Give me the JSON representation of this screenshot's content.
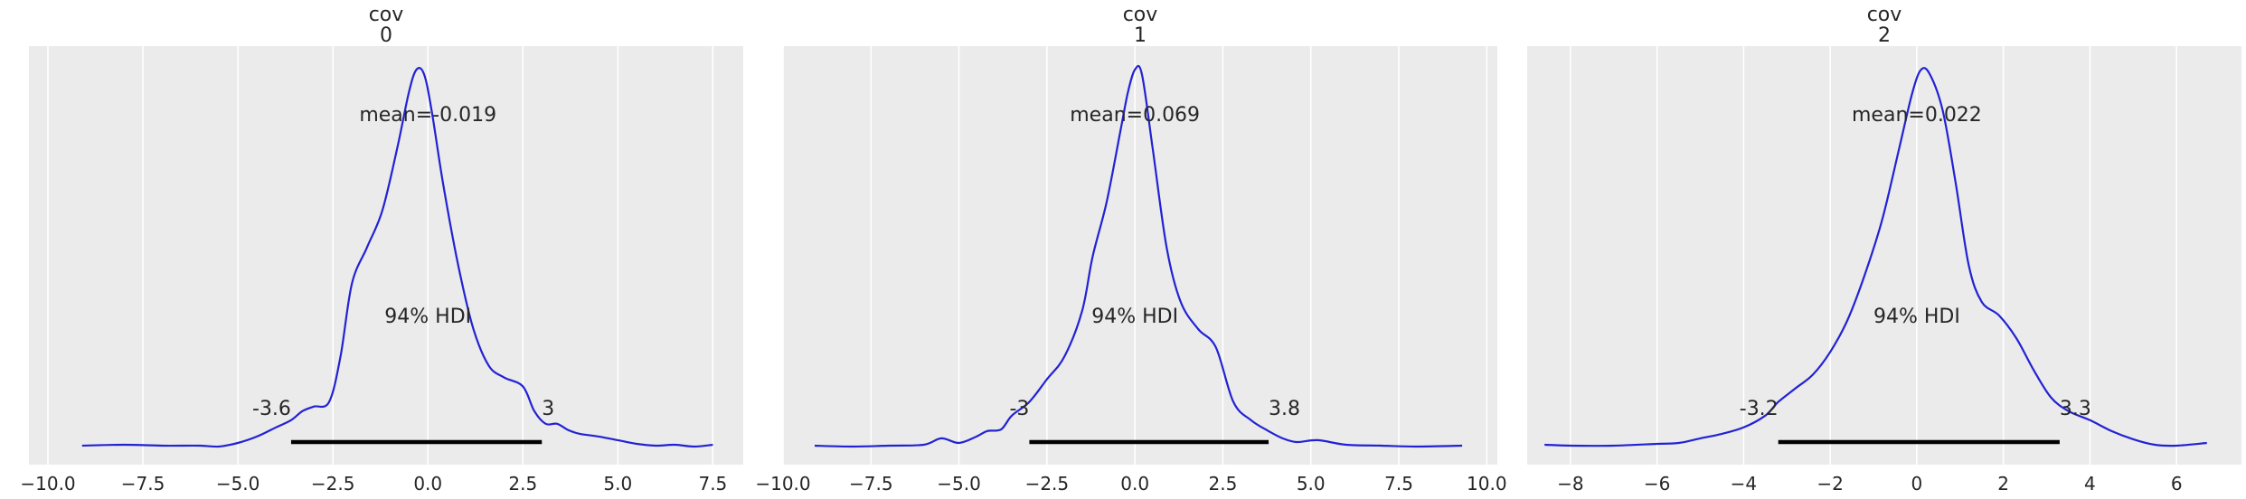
{
  "chart_data": [
    {
      "type": "line",
      "title_line1": "cov",
      "title_line2": "0",
      "xlim": [
        -10.5,
        8.3
      ],
      "xticks": [
        -10.0,
        -7.5,
        -5.0,
        -2.5,
        0.0,
        2.5,
        5.0,
        7.5
      ],
      "xtick_labels": [
        "−10.0",
        "−7.5",
        "−5.0",
        "−2.5",
        "0.0",
        "2.5",
        "5.0",
        "7.5"
      ],
      "mean_label": "mean=-0.019",
      "hdi_label": "94% HDI",
      "hdi": [
        -3.6,
        3.0
      ],
      "hdi_low_label": "-3.6",
      "hdi_high_label": "3",
      "density_max": 0.42,
      "curve": {
        "x": [
          -9.1,
          -8.0,
          -7.0,
          -6.0,
          -5.5,
          -5.0,
          -4.5,
          -4.0,
          -3.6,
          -3.3,
          -3.0,
          -2.6,
          -2.3,
          -2.0,
          -1.6,
          -1.2,
          -0.8,
          -0.5,
          -0.3,
          -0.1,
          0.1,
          0.4,
          0.8,
          1.2,
          1.6,
          2.0,
          2.5,
          2.8,
          3.1,
          3.4,
          3.7,
          4.0,
          4.5,
          5.0,
          5.5,
          6.0,
          6.5,
          7.0,
          7.5
        ],
        "y": [
          0.002,
          0.003,
          0.002,
          0.002,
          0.001,
          0.005,
          0.012,
          0.022,
          0.03,
          0.04,
          0.045,
          0.05,
          0.1,
          0.18,
          0.22,
          0.26,
          0.33,
          0.39,
          0.415,
          0.41,
          0.37,
          0.29,
          0.2,
          0.13,
          0.09,
          0.077,
          0.067,
          0.04,
          0.026,
          0.026,
          0.019,
          0.015,
          0.012,
          0.008,
          0.004,
          0.002,
          0.003,
          0.001,
          0.003
        ]
      }
    },
    {
      "type": "line",
      "title_line1": "cov",
      "title_line2": "1",
      "xlim": [
        -10.0,
        10.3
      ],
      "xticks": [
        -10.0,
        -7.5,
        -5.0,
        -2.5,
        0.0,
        2.5,
        5.0,
        7.5,
        10.0
      ],
      "xtick_labels": [
        "−10.0",
        "−7.5",
        "−5.0",
        "−2.5",
        "0.0",
        "2.5",
        "5.0",
        "7.5",
        "10.0"
      ],
      "mean_label": "mean=0.069",
      "hdi_label": "94% HDI",
      "hdi": [
        -3.0,
        3.8
      ],
      "hdi_low_label": "-3",
      "hdi_high_label": "3.8",
      "density_max": 0.42,
      "curve": {
        "x": [
          -9.1,
          -8.0,
          -7.0,
          -6.0,
          -5.5,
          -5.0,
          -4.5,
          -4.2,
          -3.8,
          -3.5,
          -3.0,
          -2.5,
          -2.0,
          -1.5,
          -1.2,
          -0.8,
          -0.4,
          -0.2,
          0.0,
          0.2,
          0.5,
          0.9,
          1.3,
          1.8,
          2.3,
          2.8,
          3.3,
          3.8,
          4.2,
          4.6,
          5.2,
          6.0,
          7.0,
          8.0,
          9.3
        ],
        "y": [
          0.002,
          0.001,
          0.002,
          0.003,
          0.01,
          0.005,
          0.012,
          0.018,
          0.02,
          0.035,
          0.05,
          0.075,
          0.1,
          0.15,
          0.21,
          0.27,
          0.35,
          0.39,
          0.415,
          0.41,
          0.33,
          0.22,
          0.16,
          0.13,
          0.11,
          0.05,
          0.03,
          0.018,
          0.01,
          0.006,
          0.008,
          0.003,
          0.002,
          0.001,
          0.002
        ]
      }
    },
    {
      "type": "line",
      "title_line1": "cov",
      "title_line2": "2",
      "xlim": [
        -9.0,
        7.5
      ],
      "xticks": [
        -8,
        -6,
        -4,
        -2,
        0,
        2,
        4,
        6
      ],
      "xtick_labels": [
        "−8",
        "−6",
        "−4",
        "−2",
        "0",
        "2",
        "4",
        "6"
      ],
      "mean_label": "mean=0.022",
      "hdi_label": "94% HDI",
      "hdi": [
        -3.2,
        3.3
      ],
      "hdi_low_label": "-3.2",
      "hdi_high_label": "3.3",
      "density_max": 0.42,
      "curve": {
        "x": [
          -8.6,
          -8.0,
          -7.0,
          -6.0,
          -5.5,
          -5.0,
          -4.5,
          -4.0,
          -3.5,
          -3.2,
          -2.8,
          -2.4,
          -2.0,
          -1.6,
          -1.2,
          -0.8,
          -0.4,
          -0.1,
          0.1,
          0.3,
          0.6,
          0.9,
          1.2,
          1.5,
          1.9,
          2.3,
          2.7,
          3.1,
          3.5,
          4.0,
          4.5,
          5.0,
          5.5,
          6.0,
          6.7
        ],
        "y": [
          0.003,
          0.002,
          0.002,
          0.004,
          0.005,
          0.01,
          0.015,
          0.022,
          0.035,
          0.05,
          0.065,
          0.08,
          0.105,
          0.14,
          0.19,
          0.25,
          0.33,
          0.39,
          0.415,
          0.41,
          0.37,
          0.29,
          0.2,
          0.16,
          0.145,
          0.12,
          0.085,
          0.055,
          0.04,
          0.03,
          0.018,
          0.009,
          0.003,
          0.002,
          0.005
        ]
      }
    }
  ],
  "colors": {
    "background": "#ebebeb",
    "grid": "#ffffff",
    "curve": "#2222d4",
    "hdi_bar": "#000000",
    "text": "#262626"
  }
}
